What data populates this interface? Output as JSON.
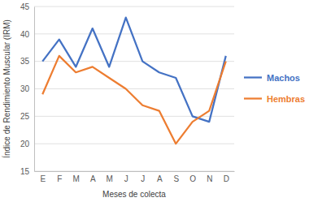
{
  "chart_data": {
    "type": "line",
    "x_label": "Meses de colecta",
    "y_label": "Índice de Rendimiento Muscular (IRM)",
    "categories": [
      "E",
      "F",
      "M",
      "A",
      "M",
      "J",
      "J",
      "A",
      "S",
      "O",
      "N",
      "D"
    ],
    "series": [
      {
        "name": "Machos",
        "color": "#4472c4",
        "values": [
          35,
          39,
          34,
          41,
          34,
          43,
          35,
          33,
          32,
          25,
          24,
          36
        ]
      },
      {
        "name": "Hembras",
        "color": "#ed7d31",
        "values": [
          29,
          36,
          33,
          34,
          32,
          30,
          27,
          26,
          20,
          24,
          26,
          35
        ]
      }
    ],
    "ylim": [
      15,
      45
    ],
    "yticks": [
      15,
      20,
      25,
      30,
      35,
      40,
      45
    ],
    "grid": true,
    "legend": "right"
  }
}
